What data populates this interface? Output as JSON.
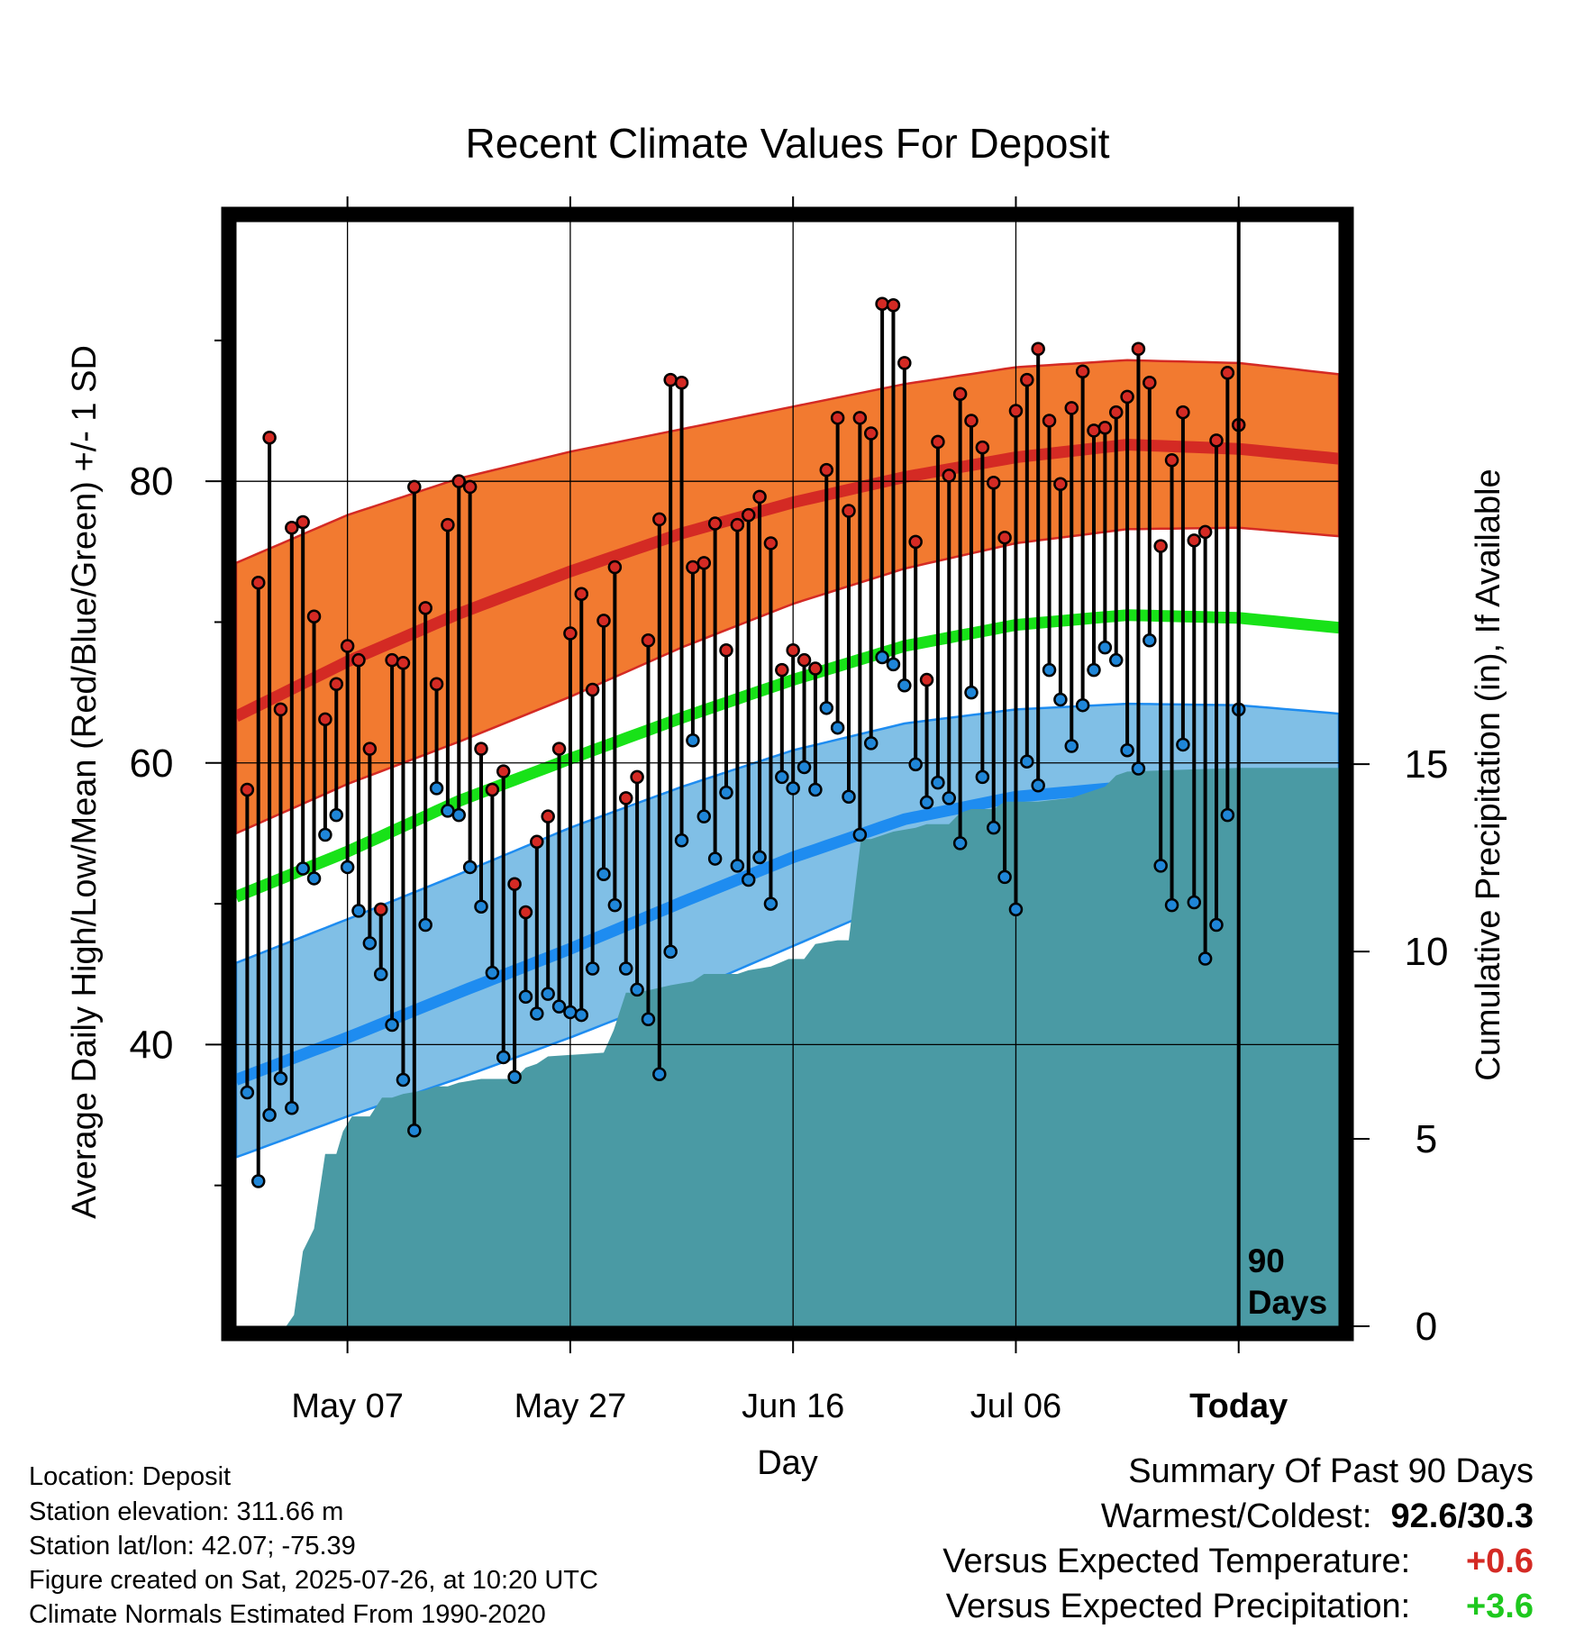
{
  "chart_data": {
    "type": "line",
    "title": "Recent Climate Values For Deposit",
    "xlabel": "Day",
    "ylabel": "Average Daily High/Low/Mean (Red/Blue/Green) +/- 1 SD",
    "y2label": "Cumulative Precipitation (in), If Available",
    "x_tick_labels": [
      "May 07",
      "May 27",
      "Jun 16",
      "Jul 06",
      "Today"
    ],
    "y_ticks": [
      40,
      60,
      80
    ],
    "y2_ticks": [
      0,
      5,
      10,
      15
    ],
    "ylim": [
      20,
      98.5
    ],
    "y2lim": [
      0,
      29.5
    ],
    "x_range_days": [
      -90,
      9
    ],
    "today_day": 0,
    "today_label": "90 Days",
    "grid": true,
    "normals": {
      "days": [
        -90,
        -80,
        -70,
        -60,
        -50,
        -40,
        -30,
        -20,
        -10,
        0,
        9
      ],
      "high_mean": [
        63.3,
        67.2,
        70.6,
        73.6,
        76.3,
        78.5,
        80.3,
        81.7,
        82.6,
        82.3,
        81.6
      ],
      "high_sd_upper": [
        74.2,
        77.6,
        80.2,
        82.1,
        83.7,
        85.3,
        86.9,
        88.1,
        88.6,
        88.4,
        87.6
      ],
      "high_sd_lower": [
        55.0,
        58.5,
        61.5,
        64.7,
        68.2,
        71.3,
        73.8,
        75.6,
        76.6,
        76.7,
        76.1
      ],
      "low_mean": [
        37.5,
        40.5,
        43.7,
        46.8,
        50.1,
        53.3,
        56.0,
        57.6,
        58.3,
        58.3,
        57.6
      ],
      "low_sd_upper": [
        45.8,
        48.9,
        52.1,
        55.4,
        58.3,
        60.9,
        62.8,
        63.8,
        64.2,
        64.1,
        63.5
      ],
      "low_sd_lower": [
        32.0,
        34.9,
        37.6,
        40.5,
        43.6,
        47.0,
        50.4,
        52.4,
        53.0,
        52.9,
        52.4
      ],
      "avg_mean": [
        50.5,
        53.7,
        57.3,
        60.3,
        63.2,
        65.9,
        68.3,
        69.8,
        70.5,
        70.3,
        69.6
      ]
    },
    "series": [
      {
        "name": "High",
        "color": "#d42a24",
        "days": [
          -89,
          -88,
          -87,
          -86,
          -85,
          -84,
          -83,
          -82,
          -81,
          -80,
          -79,
          -78,
          -77,
          -76,
          -75,
          -74,
          -73,
          -72,
          -71,
          -70,
          -69,
          -68,
          -67,
          -66,
          -65,
          -64,
          -63,
          -62,
          -61,
          -60,
          -59,
          -58,
          -57,
          -56,
          -55,
          -54,
          -53,
          -52,
          -51,
          -50,
          -49,
          -48,
          -47,
          -46,
          -45,
          -44,
          -43,
          -42,
          -41,
          -40,
          -39,
          -38,
          -37,
          -36,
          -35,
          -34,
          -33,
          -32,
          -31,
          -30,
          -29,
          -28,
          -27,
          -26,
          -25,
          -24,
          -23,
          -22,
          -21,
          -20,
          -19,
          -18,
          -17,
          -16,
          -15,
          -14,
          -13,
          -12,
          -11,
          -10,
          -9,
          -8,
          -7,
          -6,
          -5,
          -4,
          -3,
          -2,
          -1,
          0
        ],
        "values": [
          58.1,
          72.8,
          83.1,
          63.8,
          76.7,
          77.1,
          70.4,
          63.1,
          65.6,
          68.3,
          67.3,
          61.0,
          49.6,
          67.3,
          67.1,
          79.6,
          71.0,
          65.6,
          76.9,
          80.0,
          79.6,
          61.0,
          58.1,
          59.4,
          51.4,
          49.4,
          54.4,
          56.2,
          61.0,
          69.2,
          72.0,
          65.2,
          70.1,
          73.9,
          57.5,
          59.0,
          68.7,
          77.3,
          87.2,
          87.0,
          73.9,
          74.2,
          77.0,
          68.0,
          76.9,
          77.6,
          78.9,
          75.6,
          66.6,
          68.0,
          67.3,
          66.7,
          80.8,
          84.5,
          77.9,
          84.5,
          83.4,
          92.6,
          92.5,
          88.4,
          75.7,
          65.9,
          82.8,
          80.4,
          86.2,
          84.3,
          82.4,
          79.9,
          76.0,
          85.0,
          87.2,
          89.4,
          84.3,
          79.8,
          85.2,
          87.8,
          83.6,
          83.8,
          84.9,
          86.0,
          89.4,
          87.0,
          75.4,
          81.5,
          84.9,
          75.8,
          76.4,
          82.9,
          87.7,
          84.0
        ]
      },
      {
        "name": "Low",
        "color": "#1f86d8",
        "days": [
          -89,
          -88,
          -87,
          -86,
          -85,
          -84,
          -83,
          -82,
          -81,
          -80,
          -79,
          -78,
          -77,
          -76,
          -75,
          -74,
          -73,
          -72,
          -71,
          -70,
          -69,
          -68,
          -67,
          -66,
          -65,
          -64,
          -63,
          -62,
          -61,
          -60,
          -59,
          -58,
          -57,
          -56,
          -55,
          -54,
          -53,
          -52,
          -51,
          -50,
          -49,
          -48,
          -47,
          -46,
          -45,
          -44,
          -43,
          -42,
          -41,
          -40,
          -39,
          -38,
          -37,
          -36,
          -35,
          -34,
          -33,
          -32,
          -31,
          -30,
          -29,
          -28,
          -27,
          -26,
          -25,
          -24,
          -23,
          -22,
          -21,
          -20,
          -19,
          -18,
          -17,
          -16,
          -15,
          -14,
          -13,
          -12,
          -11,
          -10,
          -9,
          -8,
          -7,
          -6,
          -5,
          -4,
          -3,
          -2,
          -1,
          0
        ],
        "values": [
          36.6,
          30.3,
          35.0,
          37.6,
          35.5,
          52.5,
          51.8,
          54.9,
          56.3,
          52.6,
          49.5,
          47.2,
          45.0,
          41.4,
          37.5,
          33.9,
          48.5,
          58.2,
          56.6,
          56.3,
          52.6,
          49.8,
          45.1,
          39.1,
          37.7,
          43.4,
          42.2,
          43.6,
          42.7,
          42.3,
          42.1,
          45.4,
          52.1,
          49.9,
          45.4,
          43.9,
          41.8,
          37.9,
          46.6,
          54.5,
          61.6,
          56.2,
          53.2,
          57.9,
          52.7,
          51.7,
          53.3,
          50.0,
          59.0,
          58.2,
          59.7,
          58.1,
          63.9,
          62.5,
          57.6,
          54.9,
          61.4,
          67.5,
          67.0,
          65.5,
          59.9,
          57.2,
          58.6,
          57.5,
          54.3,
          65.0,
          59.0,
          55.4,
          51.9,
          49.6,
          60.1,
          58.4,
          66.6,
          64.5,
          61.2,
          64.1,
          66.6,
          68.2,
          67.3,
          60.9,
          59.6,
          68.7,
          52.7,
          49.9,
          61.3,
          50.1,
          46.1,
          48.5,
          56.3,
          63.8
        ]
      },
      {
        "name": "Cumulative Precipitation",
        "color": "#4a9aa4",
        "days": [
          -90,
          -85.5,
          -84.8,
          -84,
          -83,
          -82,
          -81,
          -80.4,
          -79.6,
          -78,
          -76.9,
          -76,
          -75,
          -73,
          -72,
          -71,
          -70,
          -68,
          -65,
          -64,
          -63,
          -62,
          -57,
          -56.1,
          -55,
          -54,
          -52.5,
          -51,
          -49,
          -48,
          -47,
          -45,
          -44,
          -42,
          -40.4,
          -39,
          -38,
          -36,
          -35,
          -33.9,
          -33,
          -31,
          -29,
          -28,
          -26,
          -25,
          -24,
          -22,
          -21,
          -19,
          -18,
          -15,
          -14,
          -12,
          -11,
          -10,
          0,
          9
        ],
        "values": [
          0,
          0,
          0.3,
          2,
          2.6,
          4.6,
          4.6,
          5.2,
          5.6,
          5.6,
          6.1,
          6.1,
          6.2,
          6.3,
          6.4,
          6.4,
          6.5,
          6.6,
          6.6,
          6.9,
          7.0,
          7.2,
          7.3,
          7.9,
          8.9,
          8.9,
          9.0,
          9.1,
          9.2,
          9.4,
          9.4,
          9.4,
          9.5,
          9.6,
          9.8,
          9.8,
          10.2,
          10.3,
          10.3,
          13.0,
          13.0,
          13.2,
          13.3,
          13.4,
          13.4,
          13.7,
          13.8,
          13.8,
          14.0,
          14.0,
          14.0,
          14.1,
          14.2,
          14.4,
          14.7,
          14.8,
          14.9,
          14.9
        ]
      }
    ]
  },
  "info": {
    "location": "Location: Deposit",
    "elevation": "Station elevation: 311.66 m",
    "latlon": "Station lat/lon: 42.07; -75.39",
    "created": "Figure created on Sat, 2025-07-26, at 10:20 UTC",
    "normals_period": "Climate Normals Estimated From 1990-2020"
  },
  "summary": {
    "heading": "Summary Of Past 90 Days",
    "warmest_label": "Warmest/Coldest:",
    "warmest_value": "92.6/30.3",
    "temp_label": "Versus Expected Temperature:",
    "temp_value": "+0.6",
    "temp_color": "#d42a24",
    "precip_label": "Versus Expected Precipitation:",
    "precip_value": "+3.6",
    "precip_color": "#1ec81e"
  },
  "colors": {
    "high_band": "#f27a30",
    "high_line": "#d42a24",
    "low_band": "#80bfe6",
    "low_line": "#1e8cf0",
    "mean_line": "#18e218",
    "precip_fill": "#4a9aa4"
  }
}
